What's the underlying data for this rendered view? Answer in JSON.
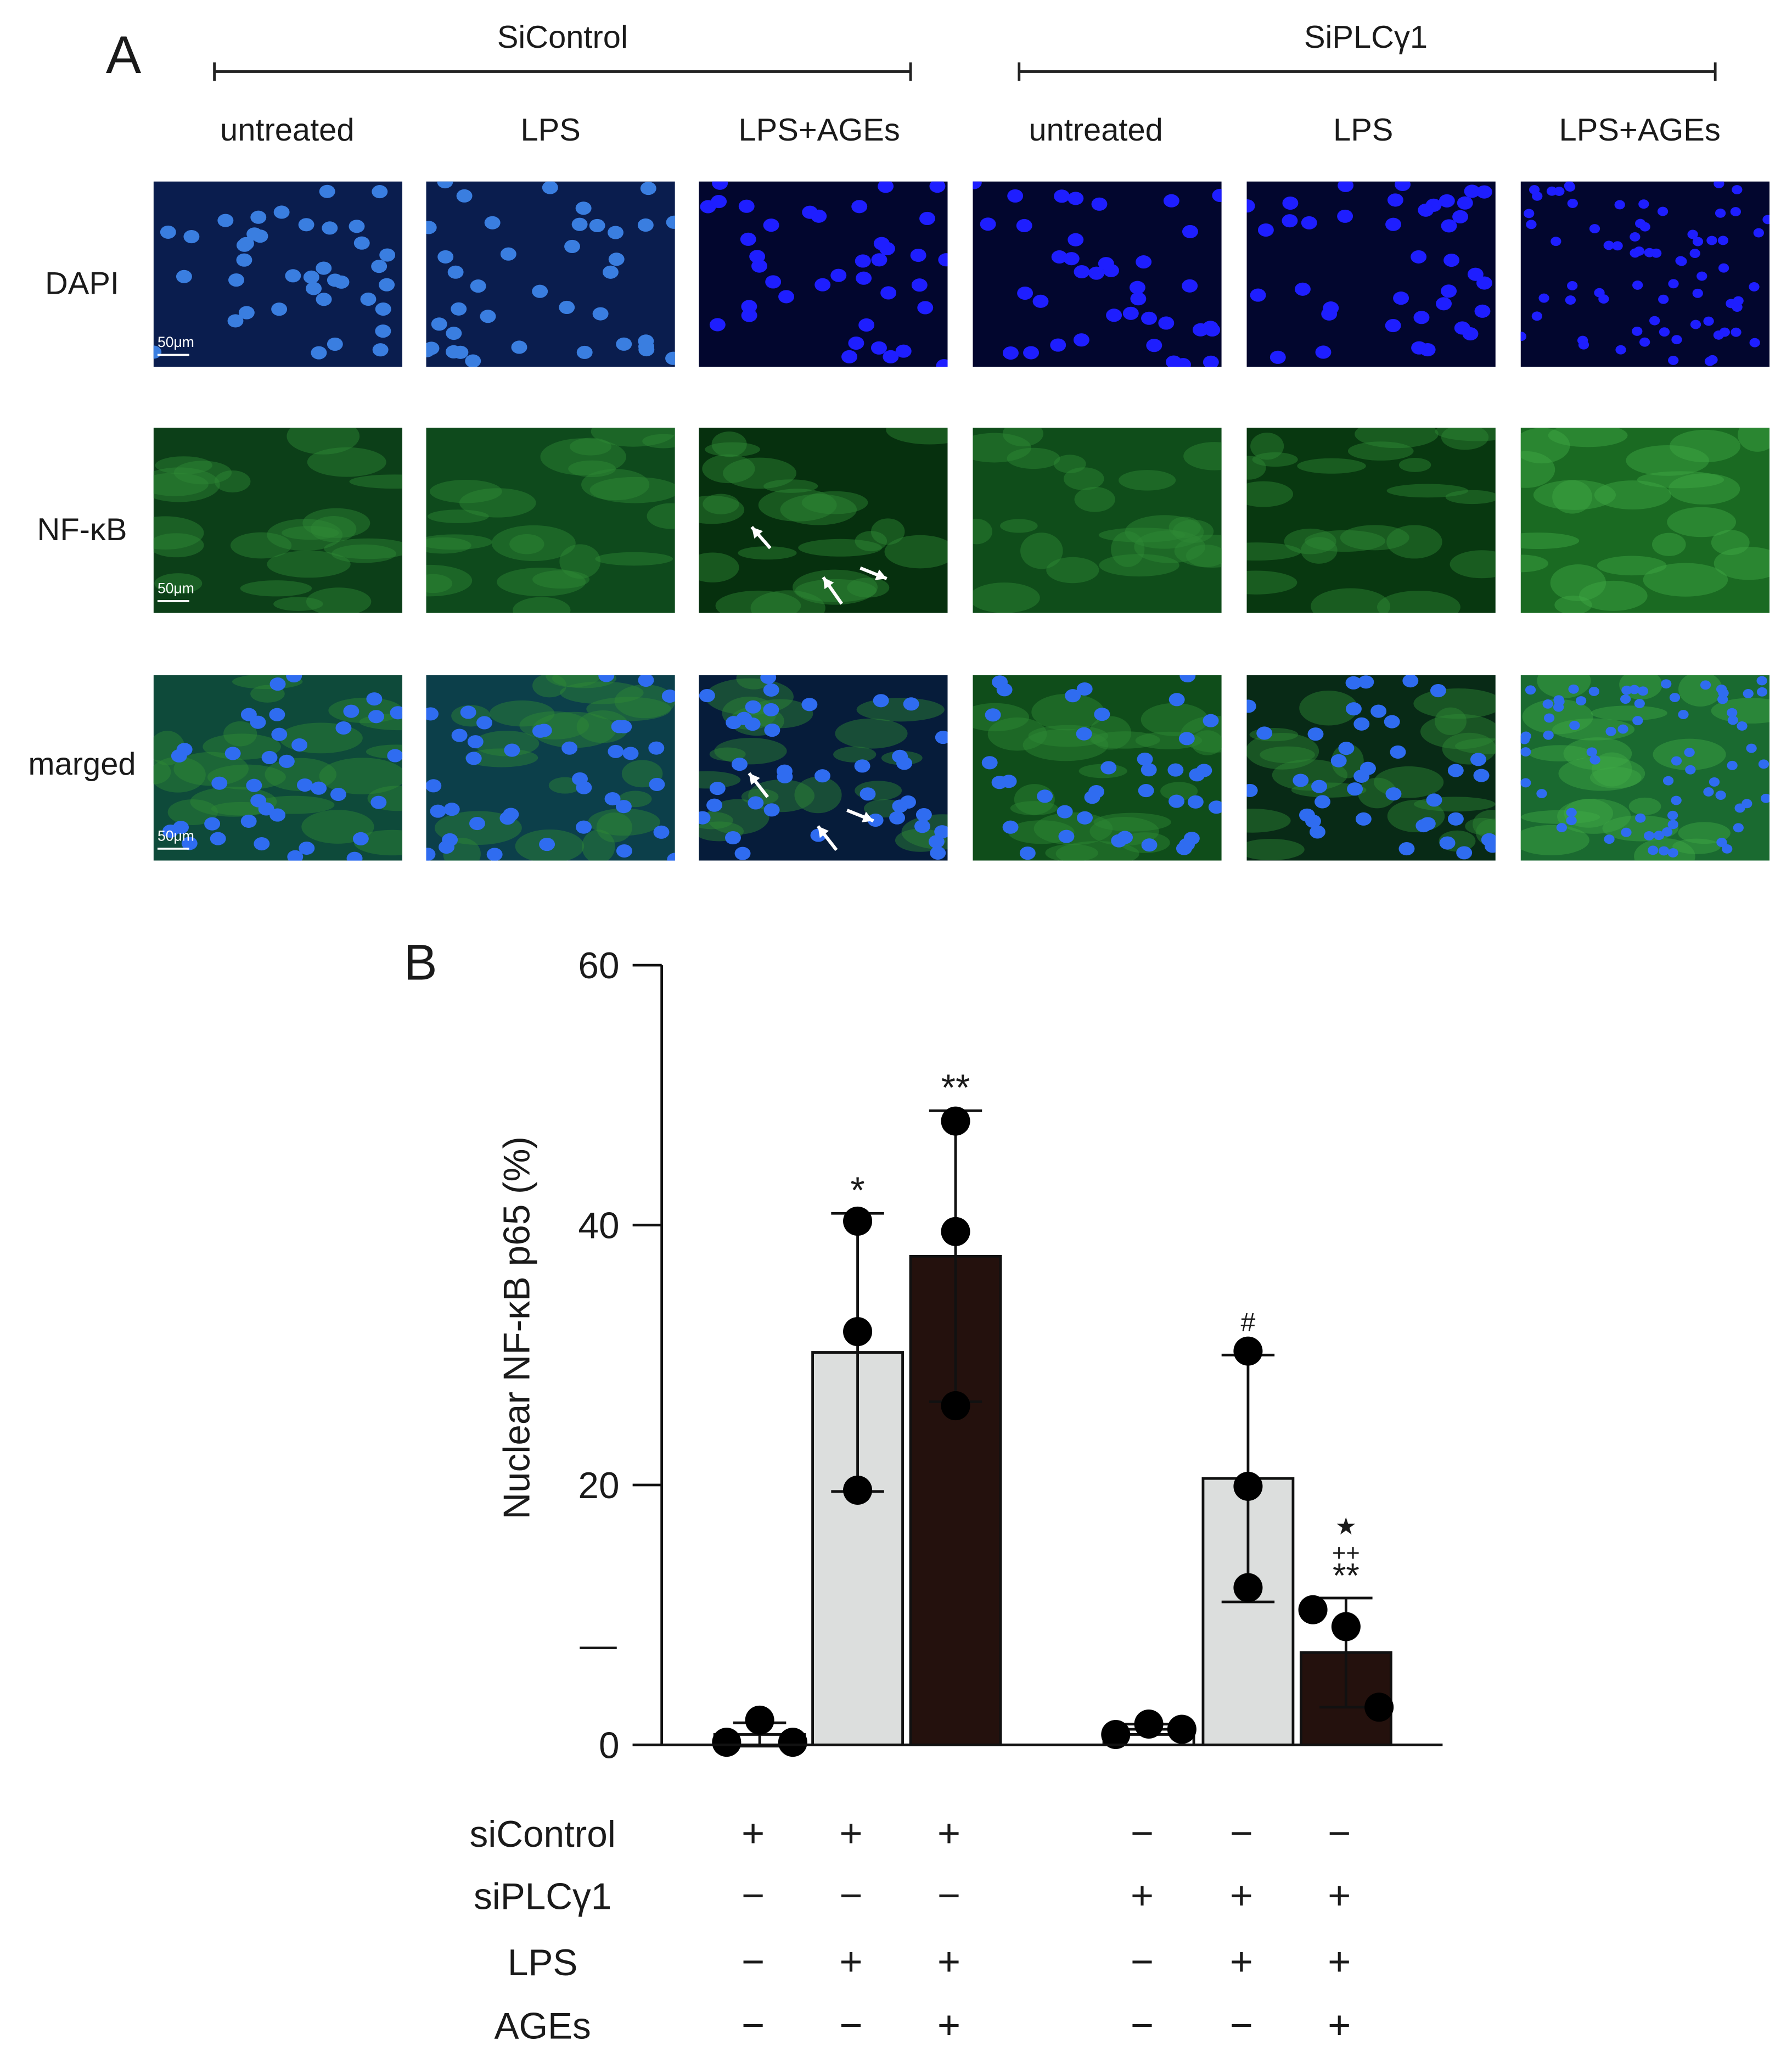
{
  "panel_a": {
    "label": "A",
    "groups": [
      "SiControl",
      "SiPLCγ1"
    ],
    "columns": [
      "untreated",
      "LPS",
      "LPS+AGEs",
      "untreated",
      "LPS",
      "LPS+AGEs"
    ],
    "rows": [
      "DAPI",
      "NF-κB",
      "marged"
    ],
    "scale_bar": "50μm"
  },
  "chart_data": {
    "type": "bar",
    "panel_label": "B",
    "ylabel": "Nuclear NF-κB p65 (%)",
    "categories": [
      null,
      null,
      null,
      null,
      null,
      null
    ],
    "values": [
      0.8,
      30.2,
      37.6,
      1.2,
      20.5,
      7.1
    ],
    "errors": [
      0.9,
      10.7,
      11.2,
      0.4,
      9.5,
      4.2
    ],
    "points": [
      [
        0.2,
        1.9,
        0.2
      ],
      [
        40.3,
        31.8,
        19.6
      ],
      [
        48.0,
        39.5,
        26.1
      ],
      [
        0.8,
        1.6,
        1.2
      ],
      [
        30.3,
        19.9,
        12.1
      ],
      [
        10.4,
        9.1,
        2.9
      ]
    ],
    "colors": [
      "#ffffff",
      "#dcdedd",
      "#24110d",
      "#ffffff",
      "#dcdedd",
      "#24110d"
    ],
    "ylim": [
      0,
      60
    ],
    "yticks": [
      0,
      20,
      40,
      60
    ],
    "significance": [
      null,
      "*",
      "**",
      null,
      "#",
      [
        "★",
        "++",
        "**"
      ]
    ],
    "conditions": [
      {
        "name": "siControl",
        "signs": [
          "+",
          "+",
          "+",
          "−",
          "−",
          "−"
        ]
      },
      {
        "name": "siPLCγ1",
        "signs": [
          "−",
          "−",
          "−",
          "+",
          "+",
          "+"
        ]
      },
      {
        "name": "LPS",
        "signs": [
          "−",
          "+",
          "+",
          "−",
          "+",
          "+"
        ]
      },
      {
        "name": "AGEs",
        "signs": [
          "−",
          "−",
          "+",
          "−",
          "−",
          "+"
        ]
      }
    ],
    "annotations": [
      "—"
    ]
  }
}
